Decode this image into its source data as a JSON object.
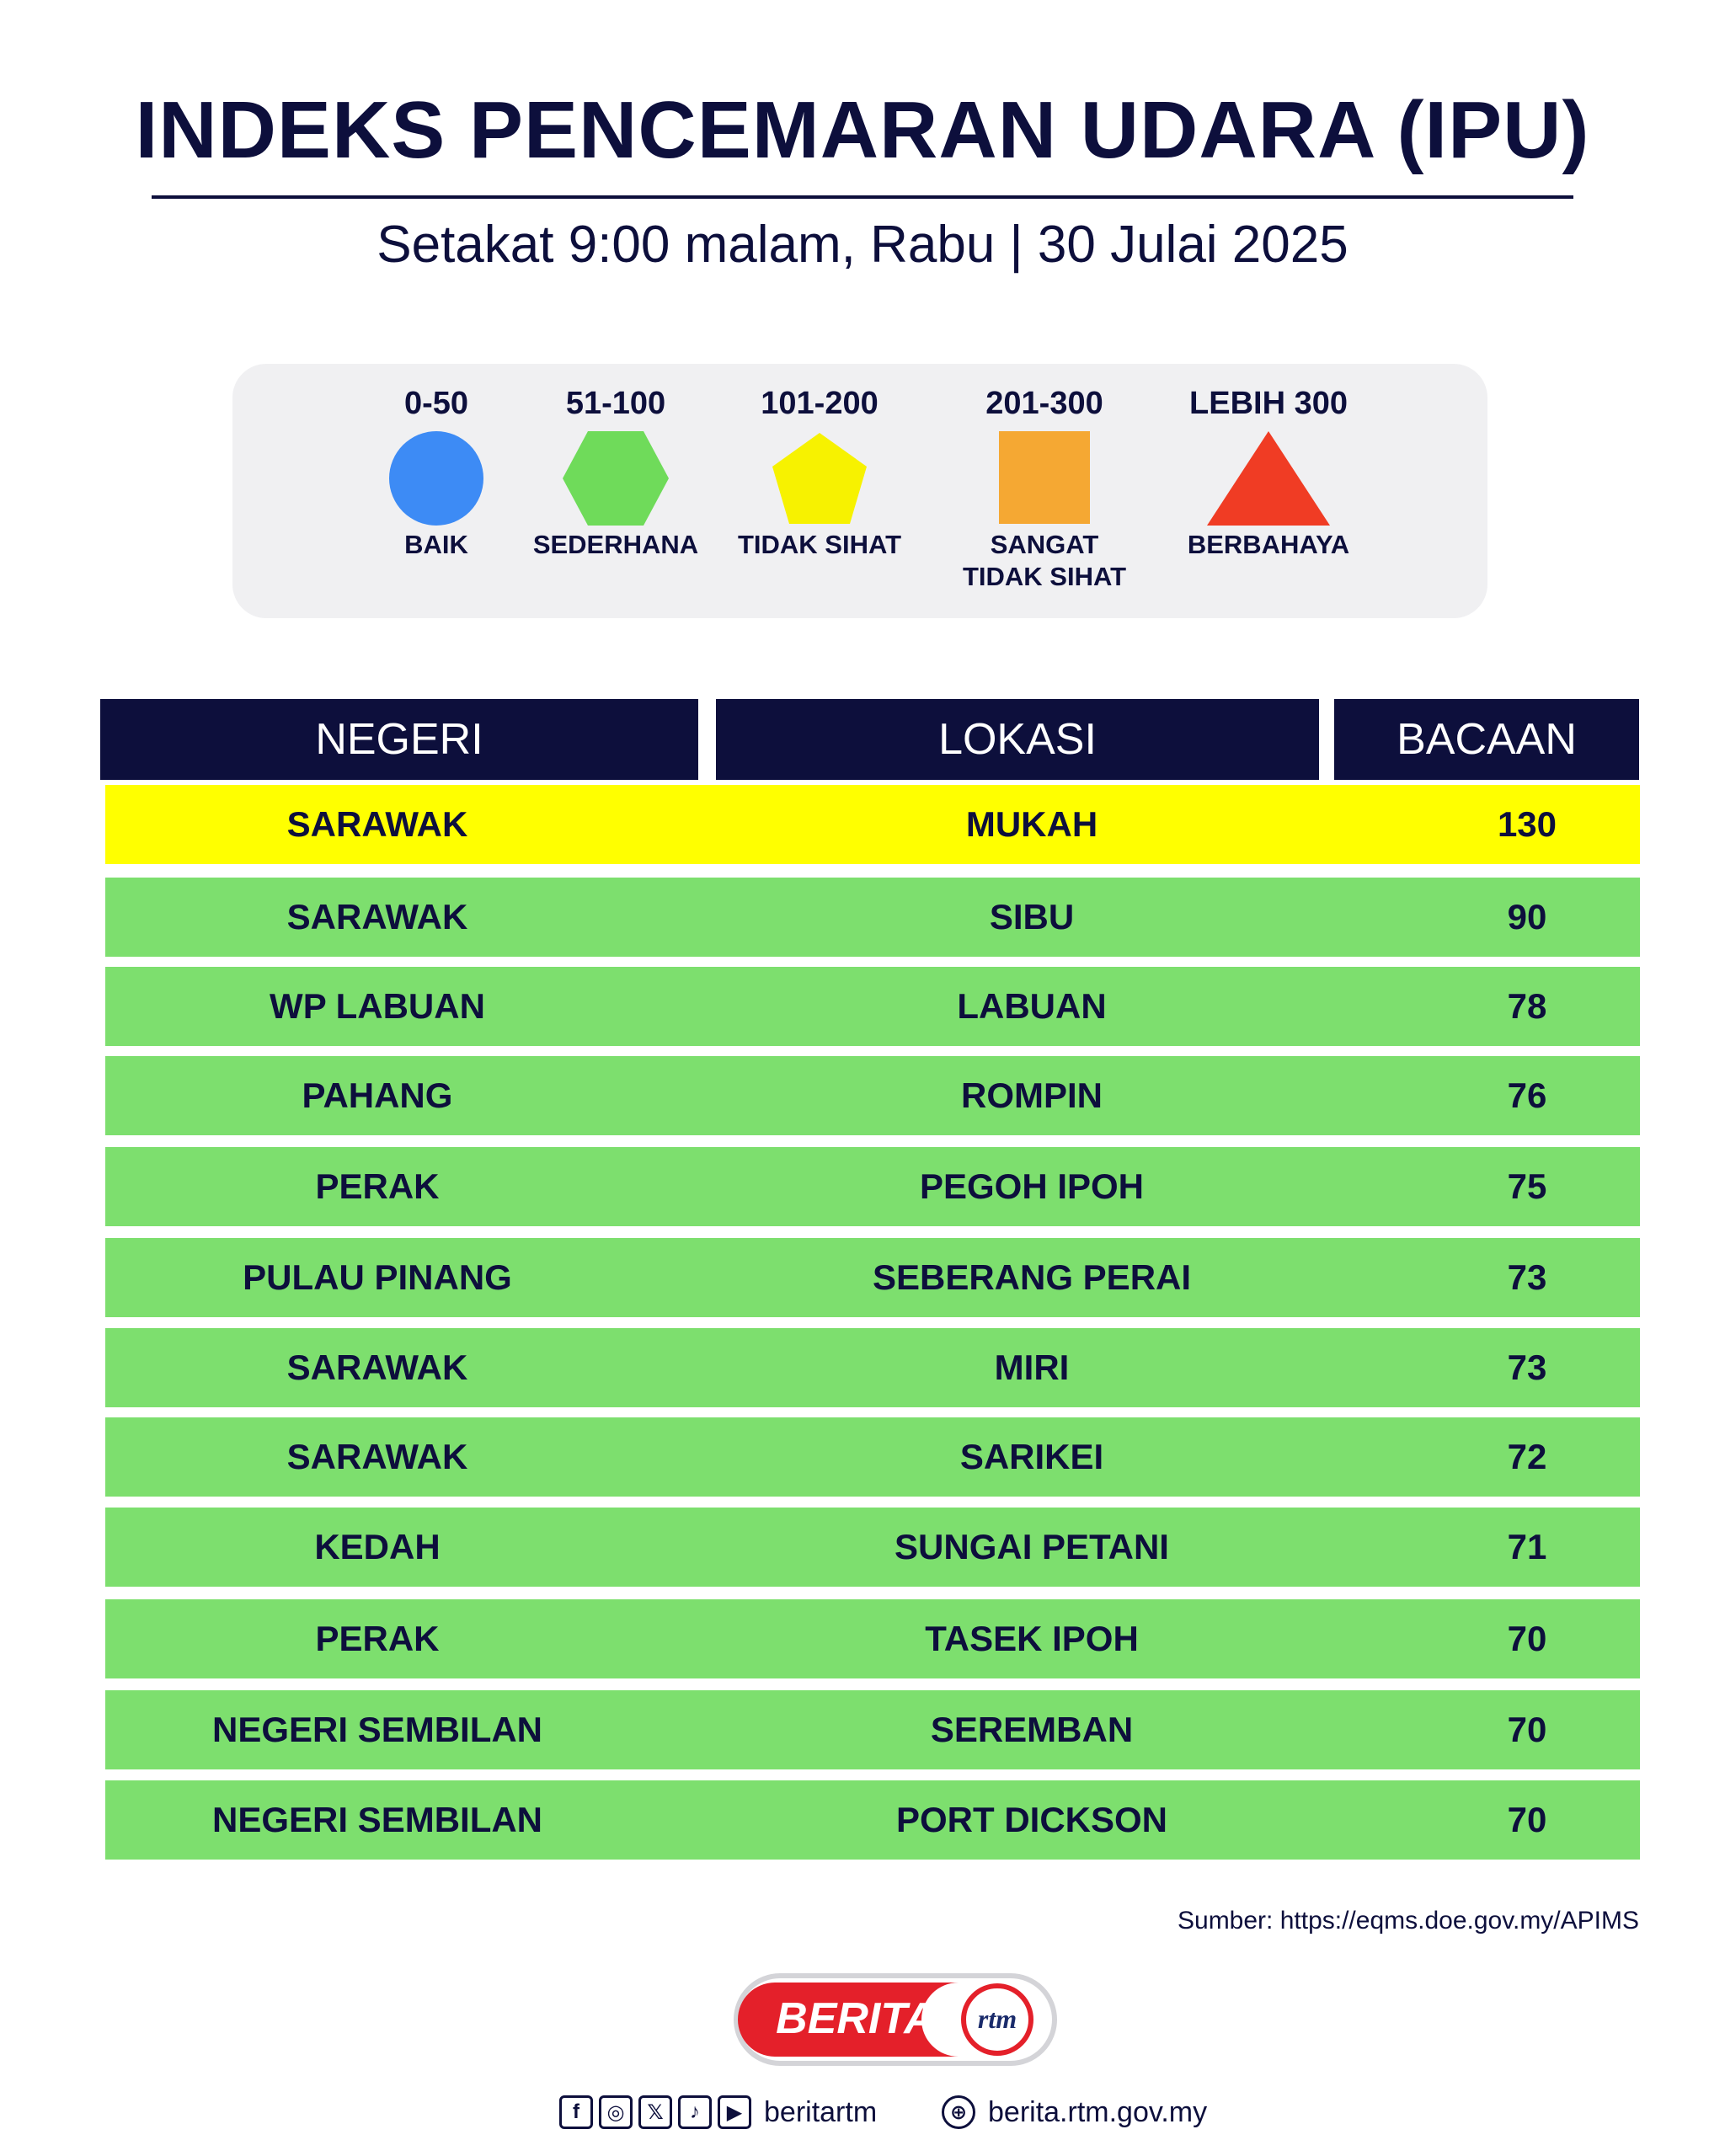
{
  "header": {
    "title": "INDEKS PENCEMARAN UDARA (IPU)",
    "subtitle": "Setakat 9:00 malam, Rabu | 30 Julai 2025"
  },
  "legend": [
    {
      "range": "0-50",
      "label": "BAIK",
      "shape": "circle",
      "color": "#3d8bf5"
    },
    {
      "range": "51-100",
      "label": "SEDERHANA",
      "shape": "hexagon",
      "color": "#6fdb5a"
    },
    {
      "range": "101-200",
      "label": "TIDAK SIHAT",
      "shape": "pentagon",
      "color": "#f7f200"
    },
    {
      "range": "201-300",
      "label": "SANGAT\nTIDAK SIHAT",
      "shape": "square",
      "color": "#f5a833"
    },
    {
      "range": "LEBIH 300",
      "label": "BERBAHAYA",
      "shape": "triangle",
      "color": "#f03c24"
    }
  ],
  "table": {
    "columns": [
      "NEGERI",
      "LOKASI",
      "BACAAN"
    ],
    "rows": [
      {
        "negeri": "SARAWAK",
        "lokasi": "MUKAH",
        "bacaan": "130",
        "color": "#ffff00"
      },
      {
        "negeri": "SARAWAK",
        "lokasi": "SIBU",
        "bacaan": "90",
        "color": "#7ddf6e"
      },
      {
        "negeri": "WP LABUAN",
        "lokasi": "LABUAN",
        "bacaan": "78",
        "color": "#7ddf6e"
      },
      {
        "negeri": "PAHANG",
        "lokasi": "ROMPIN",
        "bacaan": "76",
        "color": "#7ddf6e"
      },
      {
        "negeri": "PERAK",
        "lokasi": "PEGOH IPOH",
        "bacaan": "75",
        "color": "#7ddf6e"
      },
      {
        "negeri": "PULAU PINANG",
        "lokasi": "SEBERANG PERAI",
        "bacaan": "73",
        "color": "#7ddf6e"
      },
      {
        "negeri": "SARAWAK",
        "lokasi": "MIRI",
        "bacaan": "73",
        "color": "#7ddf6e"
      },
      {
        "negeri": "SARAWAK",
        "lokasi": "SARIKEI",
        "bacaan": "72",
        "color": "#7ddf6e"
      },
      {
        "negeri": "KEDAH",
        "lokasi": "SUNGAI PETANI",
        "bacaan": "71",
        "color": "#7ddf6e"
      },
      {
        "negeri": "PERAK",
        "lokasi": "TASEK IPOH",
        "bacaan": "70",
        "color": "#7ddf6e"
      },
      {
        "negeri": "NEGERI SEMBILAN",
        "lokasi": "SEREMBAN",
        "bacaan": "70",
        "color": "#7ddf6e"
      },
      {
        "negeri": "NEGERI SEMBILAN",
        "lokasi": "PORT DICKSON",
        "bacaan": "70",
        "color": "#7ddf6e"
      }
    ]
  },
  "source": "Sumber: https://eqms.doe.gov.my/APIMS",
  "logo": {
    "text": "BERITA",
    "badge": "rtm"
  },
  "footer": {
    "social_icons": [
      "facebook-icon",
      "instagram-icon",
      "x-icon",
      "tiktok-icon",
      "youtube-icon"
    ],
    "social_handle": "beritartm",
    "website": "berita.rtm.gov.my"
  },
  "colors": {
    "navy": "#0d0f3c",
    "brand_red": "#e4202a"
  }
}
